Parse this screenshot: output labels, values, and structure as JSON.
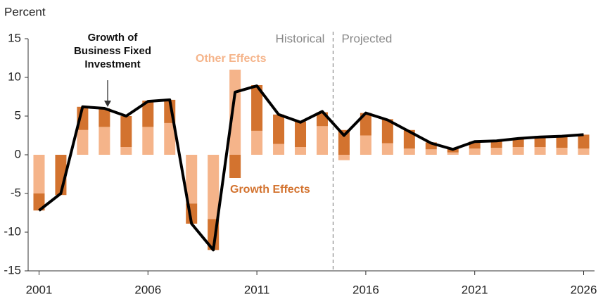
{
  "chart_data": {
    "type": "bar_line",
    "y_label": "Percent",
    "x": [
      2001,
      2002,
      2003,
      2004,
      2005,
      2006,
      2007,
      2008,
      2009,
      2010,
      2011,
      2012,
      2013,
      2014,
      2015,
      2016,
      2017,
      2018,
      2019,
      2020,
      2021,
      2022,
      2023,
      2024,
      2025,
      2026
    ],
    "series": [
      {
        "name": "Other Effects",
        "color": "#f5b48a",
        "kind": "bar",
        "values": [
          -5,
          0,
          3.2,
          3.6,
          1.0,
          3.6,
          4.1,
          -6.3,
          -8.3,
          11.0,
          3.1,
          1.4,
          1.0,
          3.7,
          -0.7,
          2.5,
          1.5,
          0.8,
          0.7,
          0.3,
          0.8,
          0.9,
          1.0,
          1.0,
          0.9,
          0.8
        ]
      },
      {
        "name": "Growth Effects",
        "color": "#d3732f",
        "kind": "bar",
        "values": [
          -2.2,
          -5.2,
          3.0,
          2.4,
          4.0,
          3.4,
          3.0,
          -2.6,
          -4.0,
          -3.0,
          5.9,
          3.8,
          3.3,
          1.8,
          3.2,
          2.9,
          3.1,
          2.4,
          0.9,
          0.5,
          0.9,
          1.0,
          1.1,
          1.3,
          1.5,
          1.8
        ]
      },
      {
        "name": "Growth of Business Fixed Investment",
        "color": "#000000",
        "kind": "line",
        "values": [
          -7.2,
          -5.0,
          6.2,
          6.0,
          5.0,
          6.9,
          7.1,
          -8.9,
          -12.3,
          8.1,
          8.9,
          5.2,
          4.2,
          5.6,
          2.5,
          5.4,
          4.5,
          3.0,
          1.5,
          0.7,
          1.7,
          1.8,
          2.1,
          2.3,
          2.4,
          2.6
        ]
      }
    ],
    "xlim": [
      2000.5,
      2026.5
    ],
    "xticks": [
      2001,
      2006,
      2011,
      2016,
      2021,
      2026
    ],
    "ylim": [
      -15,
      15
    ],
    "yticks": [
      -15,
      -10,
      -5,
      0,
      5,
      10,
      15
    ],
    "divider_x": 2014.5,
    "divider_labels": [
      "Historical",
      "Projected"
    ]
  }
}
